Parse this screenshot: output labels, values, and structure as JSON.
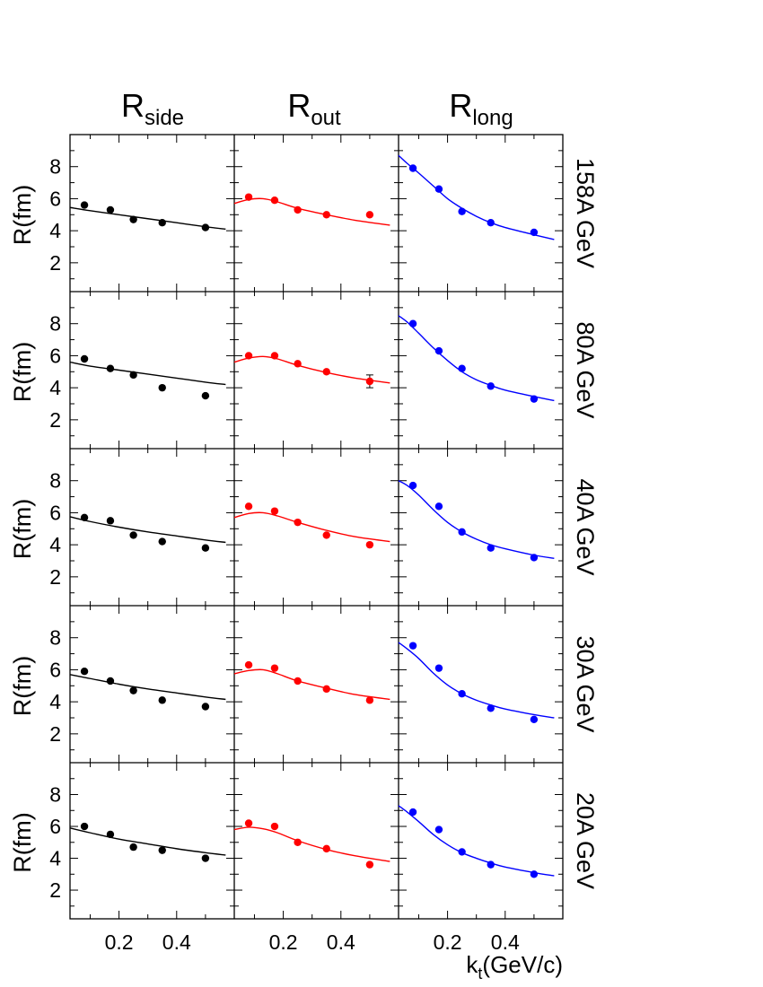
{
  "figure": {
    "column_titles": [
      {
        "main": "R",
        "sub": "side"
      },
      {
        "main": "R",
        "sub": "out"
      },
      {
        "main": "R",
        "sub": "long"
      }
    ],
    "row_labels": [
      "158A GeV",
      "80A GeV",
      "40A GeV",
      "30A GeV",
      "20A GeV"
    ],
    "ylabel": "R(fm)",
    "xlabel": {
      "main": "k",
      "sub": "t",
      "rest": "(GeV/c)"
    },
    "series_colors": [
      "#000000",
      "#ff0000",
      "#0000ff"
    ]
  },
  "chart_data": {
    "type": "scatter",
    "x_ticks": [
      0.2,
      0.4
    ],
    "y_ticks": [
      2,
      4,
      6,
      8
    ],
    "xlim": [
      0.03,
      0.6
    ],
    "ylim": [
      0.2,
      10
    ],
    "grid": false,
    "panels": [
      {
        "row": "158A GeV",
        "column": "R_side",
        "points": {
          "x": [
            0.08,
            0.17,
            0.25,
            0.35,
            0.5
          ],
          "y": [
            5.6,
            5.3,
            4.7,
            4.5,
            4.2
          ],
          "err": [
            0.1,
            0.1,
            0.1,
            0.1,
            0.1
          ]
        },
        "fit": {
          "x": [
            0.03,
            0.1,
            0.2,
            0.3,
            0.4,
            0.5,
            0.57
          ],
          "y": [
            5.45,
            5.25,
            5.0,
            4.75,
            4.5,
            4.25,
            4.1
          ]
        }
      },
      {
        "row": "158A GeV",
        "column": "R_out",
        "points": {
          "x": [
            0.08,
            0.17,
            0.25,
            0.35,
            0.5
          ],
          "y": [
            6.1,
            5.9,
            5.3,
            5.0,
            5.0
          ],
          "err": [
            0.1,
            0.1,
            0.1,
            0.1,
            0.1
          ]
        },
        "fit": {
          "x": [
            0.03,
            0.08,
            0.13,
            0.18,
            0.25,
            0.35,
            0.45,
            0.57
          ],
          "y": [
            5.7,
            5.95,
            6.0,
            5.8,
            5.4,
            5.0,
            4.65,
            4.35
          ]
        }
      },
      {
        "row": "158A GeV",
        "column": "R_long",
        "points": {
          "x": [
            0.08,
            0.17,
            0.25,
            0.35,
            0.5
          ],
          "y": [
            7.9,
            6.6,
            5.2,
            4.5,
            3.9
          ],
          "err": [
            0.1,
            0.1,
            0.1,
            0.1,
            0.1
          ]
        },
        "fit": {
          "x": [
            0.03,
            0.06,
            0.1,
            0.15,
            0.2,
            0.25,
            0.3,
            0.35,
            0.4,
            0.5,
            0.57
          ],
          "y": [
            8.7,
            8.2,
            7.6,
            6.8,
            6.0,
            5.4,
            4.9,
            4.5,
            4.2,
            3.75,
            3.45
          ]
        }
      },
      {
        "row": "80A GeV",
        "column": "R_side",
        "points": {
          "x": [
            0.08,
            0.17,
            0.25,
            0.35,
            0.5
          ],
          "y": [
            5.8,
            5.2,
            4.8,
            4.0,
            3.5
          ],
          "err": [
            0.1,
            0.1,
            0.1,
            0.1,
            0.1
          ]
        },
        "fit": {
          "x": [
            0.03,
            0.1,
            0.2,
            0.3,
            0.4,
            0.5,
            0.57
          ],
          "y": [
            5.6,
            5.35,
            5.1,
            4.85,
            4.6,
            4.35,
            4.2
          ]
        }
      },
      {
        "row": "80A GeV",
        "column": "R_out",
        "points": {
          "x": [
            0.08,
            0.17,
            0.25,
            0.35,
            0.5
          ],
          "y": [
            6.0,
            6.0,
            5.5,
            5.0,
            4.4
          ],
          "err": [
            0.1,
            0.1,
            0.1,
            0.1,
            0.4
          ]
        },
        "fit": {
          "x": [
            0.03,
            0.08,
            0.13,
            0.18,
            0.25,
            0.35,
            0.45,
            0.57
          ],
          "y": [
            5.6,
            5.85,
            5.95,
            5.8,
            5.4,
            4.95,
            4.6,
            4.3
          ]
        }
      },
      {
        "row": "80A GeV",
        "column": "R_long",
        "points": {
          "x": [
            0.08,
            0.17,
            0.25,
            0.35,
            0.5
          ],
          "y": [
            8.0,
            6.3,
            5.2,
            4.1,
            3.3
          ],
          "err": [
            0.1,
            0.1,
            0.1,
            0.1,
            0.1
          ]
        },
        "fit": {
          "x": [
            0.03,
            0.06,
            0.1,
            0.15,
            0.2,
            0.25,
            0.3,
            0.35,
            0.4,
            0.5,
            0.57
          ],
          "y": [
            8.5,
            8.1,
            7.4,
            6.5,
            5.7,
            5.0,
            4.5,
            4.15,
            3.85,
            3.45,
            3.2
          ]
        }
      },
      {
        "row": "40A GeV",
        "column": "R_side",
        "points": {
          "x": [
            0.08,
            0.17,
            0.25,
            0.35,
            0.5
          ],
          "y": [
            5.7,
            5.5,
            4.6,
            4.2,
            3.8
          ],
          "err": [
            0.1,
            0.1,
            0.1,
            0.1,
            0.1
          ]
        },
        "fit": {
          "x": [
            0.03,
            0.1,
            0.2,
            0.3,
            0.4,
            0.5,
            0.57
          ],
          "y": [
            5.75,
            5.45,
            5.1,
            4.8,
            4.55,
            4.3,
            4.15
          ]
        }
      },
      {
        "row": "40A GeV",
        "column": "R_out",
        "points": {
          "x": [
            0.08,
            0.17,
            0.25,
            0.35,
            0.5
          ],
          "y": [
            6.4,
            6.1,
            5.4,
            4.6,
            4.0
          ],
          "err": [
            0.1,
            0.1,
            0.1,
            0.1,
            0.1
          ]
        },
        "fit": {
          "x": [
            0.03,
            0.08,
            0.13,
            0.18,
            0.25,
            0.35,
            0.45,
            0.57
          ],
          "y": [
            5.7,
            5.95,
            6.0,
            5.8,
            5.4,
            4.9,
            4.5,
            4.2
          ]
        }
      },
      {
        "row": "40A GeV",
        "column": "R_long",
        "points": {
          "x": [
            0.08,
            0.17,
            0.25,
            0.35,
            0.5
          ],
          "y": [
            7.7,
            6.4,
            4.8,
            3.8,
            3.2
          ],
          "err": [
            0.1,
            0.1,
            0.1,
            0.1,
            0.1
          ]
        },
        "fit": {
          "x": [
            0.03,
            0.06,
            0.1,
            0.15,
            0.2,
            0.25,
            0.3,
            0.35,
            0.4,
            0.5,
            0.57
          ],
          "y": [
            8.0,
            7.7,
            7.1,
            6.2,
            5.4,
            4.8,
            4.35,
            4.0,
            3.75,
            3.35,
            3.15
          ]
        }
      },
      {
        "row": "30A GeV",
        "column": "R_side",
        "points": {
          "x": [
            0.08,
            0.17,
            0.25,
            0.35,
            0.5
          ],
          "y": [
            5.9,
            5.3,
            4.7,
            4.1,
            3.7
          ],
          "err": [
            0.1,
            0.1,
            0.1,
            0.1,
            0.1
          ]
        },
        "fit": {
          "x": [
            0.03,
            0.1,
            0.2,
            0.3,
            0.4,
            0.5,
            0.57
          ],
          "y": [
            5.7,
            5.45,
            5.1,
            4.8,
            4.55,
            4.3,
            4.15
          ]
        }
      },
      {
        "row": "30A GeV",
        "column": "R_out",
        "points": {
          "x": [
            0.08,
            0.17,
            0.25,
            0.35,
            0.5
          ],
          "y": [
            6.3,
            6.1,
            5.3,
            4.8,
            4.1
          ],
          "err": [
            0.1,
            0.1,
            0.1,
            0.1,
            0.1
          ]
        },
        "fit": {
          "x": [
            0.03,
            0.08,
            0.13,
            0.18,
            0.25,
            0.35,
            0.45,
            0.57
          ],
          "y": [
            5.75,
            5.95,
            6.0,
            5.75,
            5.3,
            4.85,
            4.45,
            4.15
          ]
        }
      },
      {
        "row": "30A GeV",
        "column": "R_long",
        "points": {
          "x": [
            0.08,
            0.17,
            0.25,
            0.35,
            0.5
          ],
          "y": [
            7.5,
            6.1,
            4.5,
            3.6,
            2.9
          ],
          "err": [
            0.1,
            0.1,
            0.1,
            0.1,
            0.1
          ]
        },
        "fit": {
          "x": [
            0.03,
            0.06,
            0.1,
            0.15,
            0.2,
            0.25,
            0.3,
            0.35,
            0.4,
            0.5,
            0.57
          ],
          "y": [
            7.7,
            7.3,
            6.7,
            5.8,
            5.05,
            4.5,
            4.1,
            3.8,
            3.55,
            3.2,
            3.0
          ]
        }
      },
      {
        "row": "20A GeV",
        "column": "R_side",
        "points": {
          "x": [
            0.08,
            0.17,
            0.25,
            0.35,
            0.5
          ],
          "y": [
            6.0,
            5.5,
            4.7,
            4.5,
            4.0
          ],
          "err": [
            0.1,
            0.1,
            0.1,
            0.1,
            0.1
          ]
        },
        "fit": {
          "x": [
            0.03,
            0.1,
            0.2,
            0.3,
            0.4,
            0.5,
            0.57
          ],
          "y": [
            5.9,
            5.6,
            5.2,
            4.9,
            4.6,
            4.35,
            4.2
          ]
        }
      },
      {
        "row": "20A GeV",
        "column": "R_out",
        "points": {
          "x": [
            0.08,
            0.17,
            0.25,
            0.35,
            0.5
          ],
          "y": [
            6.2,
            6.0,
            5.0,
            4.6,
            3.6
          ],
          "err": [
            0.1,
            0.1,
            0.1,
            0.1,
            0.1
          ]
        },
        "fit": {
          "x": [
            0.03,
            0.08,
            0.13,
            0.18,
            0.25,
            0.35,
            0.45,
            0.57
          ],
          "y": [
            5.8,
            5.95,
            5.85,
            5.6,
            5.1,
            4.55,
            4.15,
            3.8
          ]
        }
      },
      {
        "row": "20A GeV",
        "column": "R_long",
        "points": {
          "x": [
            0.08,
            0.17,
            0.25,
            0.35,
            0.5
          ],
          "y": [
            6.9,
            5.8,
            4.4,
            3.6,
            3.0
          ],
          "err": [
            0.1,
            0.1,
            0.1,
            0.1,
            0.1
          ]
        },
        "fit": {
          "x": [
            0.03,
            0.06,
            0.1,
            0.15,
            0.2,
            0.25,
            0.3,
            0.35,
            0.4,
            0.5,
            0.57
          ],
          "y": [
            7.3,
            6.9,
            6.3,
            5.5,
            4.85,
            4.35,
            4.0,
            3.7,
            3.45,
            3.1,
            2.9
          ]
        }
      }
    ]
  }
}
